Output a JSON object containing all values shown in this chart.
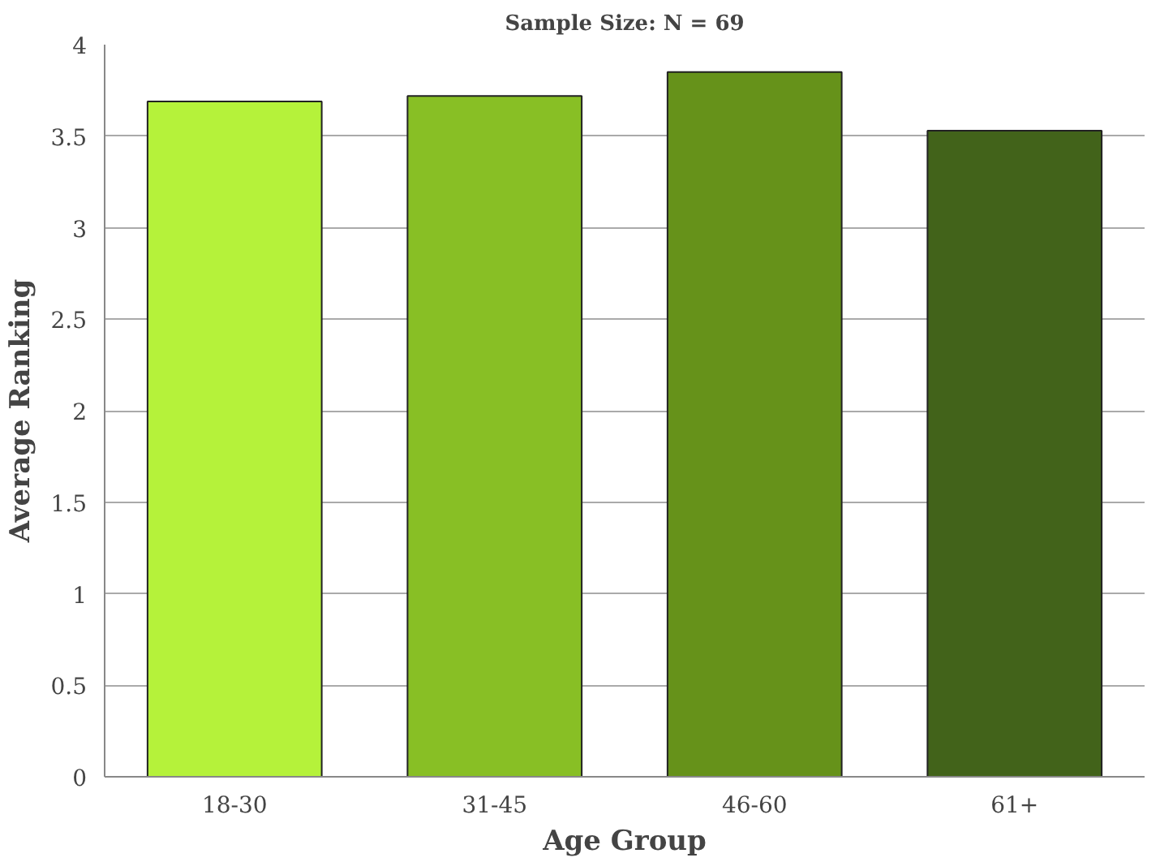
{
  "chart_data": {
    "type": "bar",
    "title": "Sample Size: N = 69",
    "xlabel": "Age Group",
    "ylabel": "Average Ranking",
    "categories": [
      "18-30",
      "31-45",
      "46-60",
      "61+"
    ],
    "values": [
      3.69,
      3.72,
      3.85,
      3.53
    ],
    "colors": [
      "#b5f23a",
      "#88bf25",
      "#66921a",
      "#42631a"
    ],
    "ylim": [
      0,
      4
    ],
    "yticks": [
      0,
      0.5,
      1,
      1.5,
      2,
      2.5,
      3,
      3.5,
      4
    ],
    "grid": "y"
  }
}
